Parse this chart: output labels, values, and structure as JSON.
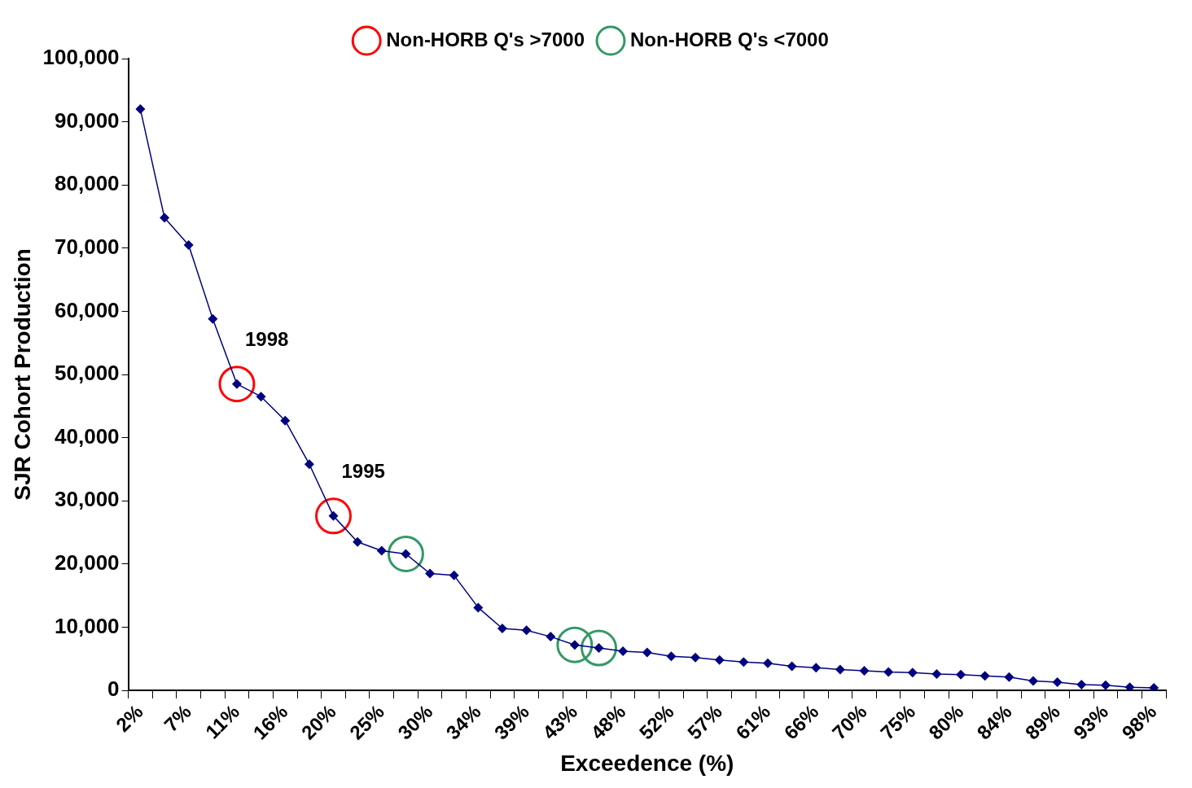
{
  "chart_data": {
    "type": "line",
    "xlabel": "Exceedence (%)",
    "ylabel": "SJR Cohort Production",
    "categories": [
      "2%",
      null,
      "7%",
      null,
      "11%",
      null,
      "16%",
      null,
      "20%",
      null,
      "25%",
      null,
      "30%",
      null,
      "34%",
      null,
      "39%",
      null,
      "43%",
      null,
      "48%",
      null,
      "52%",
      null,
      "57%",
      null,
      "61%",
      null,
      "66%",
      null,
      "70%",
      null,
      "75%",
      null,
      "80%",
      null,
      "84%",
      null,
      "89%",
      null,
      "93%",
      null,
      "98%"
    ],
    "series": [
      {
        "color": "#000080",
        "marker": "diamond",
        "values": [
          92000,
          74800,
          70500,
          58800,
          48500,
          46500,
          42700,
          35800,
          27600,
          23500,
          22100,
          21600,
          18500,
          18200,
          13100,
          9800,
          9500,
          8500,
          7200,
          6700,
          6200,
          6000,
          5400,
          5200,
          4800,
          4500,
          4300,
          3800,
          3600,
          3300,
          3100,
          2900,
          2800,
          2600,
          2500,
          2300,
          2100,
          1500,
          1300,
          900,
          800,
          500,
          400
        ]
      },
      {
        "type": "scatter",
        "name": "Non-HORB Q's >7000",
        "color": "#ff0000",
        "marker": "circle",
        "values": [
          null,
          null,
          null,
          null,
          48500,
          null,
          null,
          null,
          27600,
          null,
          null,
          null,
          null,
          null,
          null,
          null,
          null,
          null,
          null,
          null,
          null,
          null,
          null,
          null,
          null,
          null,
          null,
          null,
          null,
          null,
          null,
          null,
          null,
          null,
          null,
          null,
          null,
          null,
          null,
          null,
          null,
          null,
          null
        ]
      },
      {
        "type": "scatter",
        "name": "Non-HORB Q's <7000",
        "color": "#339966",
        "marker": "circle",
        "values": [
          null,
          null,
          null,
          null,
          null,
          null,
          null,
          null,
          null,
          null,
          null,
          21600,
          null,
          null,
          null,
          null,
          null,
          null,
          7200,
          6700,
          null,
          null,
          null,
          null,
          null,
          null,
          null,
          null,
          null,
          null,
          null,
          null,
          null,
          null,
          null,
          null,
          null,
          null,
          null,
          null,
          null,
          null,
          null
        ]
      }
    ],
    "ylim": [
      0,
      100000
    ],
    "yticks": [
      0,
      {
        "value": 10000,
        "label": "10,000"
      },
      {
        "value": 20000,
        "label": "20,000"
      },
      {
        "value": 30000,
        "label": "30,000"
      },
      {
        "value": 40000,
        "label": "40,000"
      },
      {
        "value": 50000,
        "label": "50,000"
      },
      {
        "value": 60000,
        "label": "60,000"
      },
      {
        "value": 70000,
        "label": "70,000"
      },
      {
        "value": 80000,
        "label": "80,000"
      },
      {
        "value": 90000,
        "label": "90,000"
      },
      {
        "value": 100000,
        "label": "100,000"
      }
    ],
    "grid": false,
    "legend": "top",
    "annotations": [
      {
        "text": "1998",
        "x": "11%",
        "y": 48500
      },
      {
        "text": "1995",
        "x": "20%",
        "y": 27600
      }
    ]
  }
}
